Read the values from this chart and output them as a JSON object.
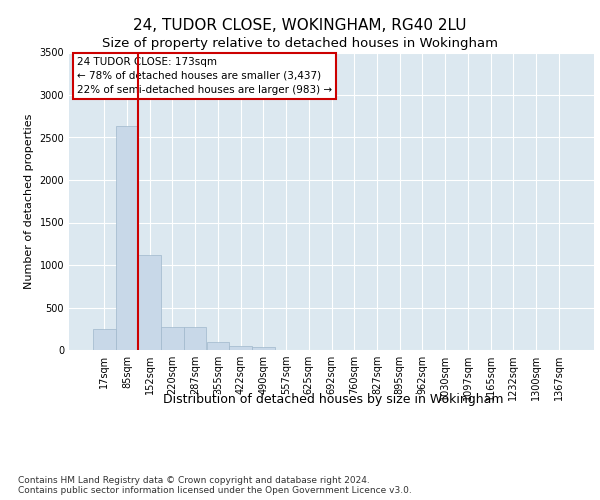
{
  "title_line1": "24, TUDOR CLOSE, WOKINGHAM, RG40 2LU",
  "title_line2": "Size of property relative to detached houses in Wokingham",
  "xlabel": "Distribution of detached houses by size in Wokingham",
  "ylabel": "Number of detached properties",
  "bar_labels": [
    "17sqm",
    "85sqm",
    "152sqm",
    "220sqm",
    "287sqm",
    "355sqm",
    "422sqm",
    "490sqm",
    "557sqm",
    "625sqm",
    "692sqm",
    "760sqm",
    "827sqm",
    "895sqm",
    "962sqm",
    "1030sqm",
    "1097sqm",
    "1165sqm",
    "1232sqm",
    "1300sqm",
    "1367sqm"
  ],
  "bar_values": [
    250,
    2630,
    1120,
    270,
    270,
    100,
    50,
    30,
    0,
    0,
    0,
    0,
    0,
    0,
    0,
    0,
    0,
    0,
    0,
    0,
    0
  ],
  "bar_color": "#c8d8e8",
  "bar_edgecolor": "#a0b8cc",
  "vline_index": 2,
  "vline_color": "#cc0000",
  "ylim": [
    0,
    3500
  ],
  "yticks": [
    0,
    500,
    1000,
    1500,
    2000,
    2500,
    3000,
    3500
  ],
  "annotation_box_text": "24 TUDOR CLOSE: 173sqm\n← 78% of detached houses are smaller (3,437)\n22% of semi-detached houses are larger (983) →",
  "footer_text": "Contains HM Land Registry data © Crown copyright and database right 2024.\nContains public sector information licensed under the Open Government Licence v3.0.",
  "plot_bg_color": "#dce8f0",
  "grid_color": "#ffffff",
  "title1_fontsize": 11,
  "title2_fontsize": 9.5,
  "xlabel_fontsize": 9,
  "ylabel_fontsize": 8,
  "tick_fontsize": 7,
  "footer_fontsize": 6.5,
  "annot_fontsize": 7.5
}
